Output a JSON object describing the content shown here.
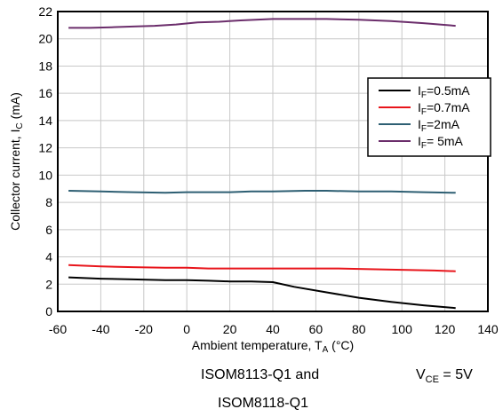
{
  "chart_data": {
    "type": "line",
    "xlabel": "Ambient temperature, T",
    "xlabel_sub": "A",
    "xlabel_unit": " (°C)",
    "ylabel": "Collector current, I",
    "ylabel_sub": "C",
    "ylabel_unit": " (mA)",
    "xlim": [
      -60,
      140
    ],
    "ylim": [
      0,
      22
    ],
    "xticks": [
      "-60",
      "-40",
      "-20",
      "0",
      "20",
      "40",
      "60",
      "80",
      "100",
      "120",
      "140"
    ],
    "yticks": [
      "0",
      "2",
      "4",
      "6",
      "8",
      "10",
      "12",
      "14",
      "16",
      "18",
      "20",
      "22"
    ],
    "grid": true,
    "legend_position": "top-right",
    "series": [
      {
        "name": "I",
        "name_sub": "F",
        "name_rest": "=0.5mA",
        "color": "#000000",
        "x": [
          -55,
          -40,
          -25,
          -10,
          0,
          10,
          20,
          30,
          40,
          50,
          65,
          80,
          95,
          110,
          125
        ],
        "y": [
          2.5,
          2.4,
          2.35,
          2.3,
          2.3,
          2.25,
          2.2,
          2.2,
          2.15,
          1.8,
          1.4,
          1.0,
          0.7,
          0.45,
          0.25
        ]
      },
      {
        "name": "I",
        "name_sub": "F",
        "name_rest": "=0.7mA",
        "color": "#e8151b",
        "x": [
          -55,
          -40,
          -25,
          -10,
          0,
          10,
          20,
          30,
          40,
          55,
          70,
          85,
          100,
          115,
          125
        ],
        "y": [
          3.4,
          3.3,
          3.25,
          3.2,
          3.2,
          3.15,
          3.15,
          3.15,
          3.15,
          3.15,
          3.15,
          3.1,
          3.05,
          3.0,
          2.95
        ]
      },
      {
        "name": "I",
        "name_sub": "F",
        "name_rest": "=2mA",
        "color": "#2e5f73",
        "x": [
          -55,
          -40,
          -25,
          -10,
          0,
          10,
          20,
          30,
          40,
          55,
          65,
          80,
          95,
          110,
          125
        ],
        "y": [
          8.85,
          8.8,
          8.75,
          8.7,
          8.75,
          8.75,
          8.75,
          8.8,
          8.8,
          8.85,
          8.85,
          8.8,
          8.8,
          8.75,
          8.7
        ]
      },
      {
        "name": "I",
        "name_sub": "F",
        "name_rest": "= 5mA",
        "color": "#6b2d6b",
        "x": [
          -55,
          -45,
          -35,
          -25,
          -15,
          -5,
          5,
          15,
          25,
          40,
          50,
          65,
          80,
          95,
          110,
          125
        ],
        "y": [
          20.8,
          20.8,
          20.85,
          20.9,
          20.95,
          21.05,
          21.2,
          21.25,
          21.35,
          21.45,
          21.45,
          21.45,
          21.4,
          21.3,
          21.15,
          20.95
        ]
      }
    ]
  },
  "notes": {
    "part_line1": "ISOM8113-Q1 and",
    "part_line2": "ISOM8118-Q1",
    "vce_label": "V",
    "vce_sub": "CE",
    "vce_value": " = 5V"
  }
}
